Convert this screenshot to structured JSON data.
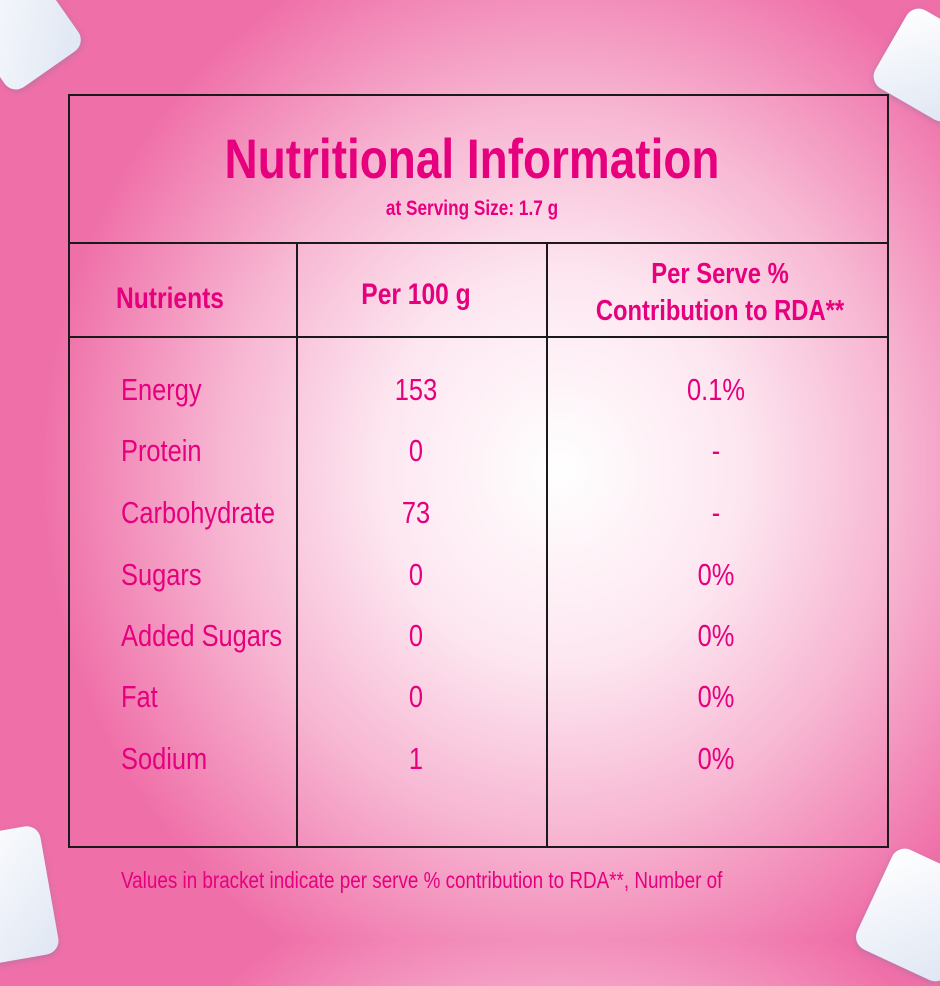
{
  "title": "Nutritional Information",
  "subtitle": "at Serving Size: 1.7 g",
  "headers": [
    "Nutrients",
    "Per 100 g",
    "Per Serve %",
    "Contribution to RDA**"
  ],
  "rows": [
    {
      "name": "Energy",
      "per100": "153",
      "rda": "0.1%"
    },
    {
      "name": "Protein",
      "per100": "0",
      "rda": "-"
    },
    {
      "name": "Carbohydrate",
      "per100": "73",
      "rda": "-"
    },
    {
      "name": "Sugars",
      "per100": "0",
      "rda": "0%"
    },
    {
      "name": "Added Sugars",
      "per100": "0",
      "rda": "0%"
    },
    {
      "name": "Fat",
      "per100": "0",
      "rda": "0%"
    },
    {
      "name": "Sodium",
      "per100": "1",
      "rda": "0%"
    }
  ],
  "footnote": "Values in  bracket indicate per serve % contribution to RDA**, Number of",
  "colors": {
    "text": "#e6007e",
    "border": "#1a1a1a"
  }
}
